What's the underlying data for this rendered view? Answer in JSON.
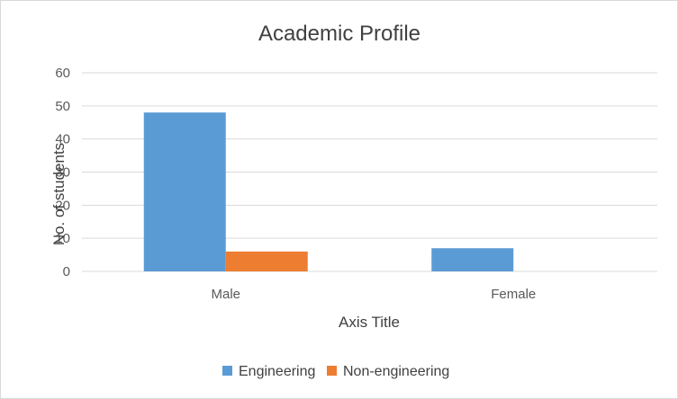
{
  "chart_data": {
    "type": "bar",
    "title": "Academic Profile",
    "xlabel": "Axis Title",
    "ylabel": "No. of students",
    "categories": [
      "Male",
      "Female"
    ],
    "series": [
      {
        "name": "Engineering",
        "values": [
          48,
          7
        ]
      },
      {
        "name": "Non-engineering",
        "values": [
          6,
          0
        ]
      }
    ],
    "ylim": [
      0,
      60
    ],
    "yticks": [
      0,
      10,
      20,
      30,
      40,
      50,
      60
    ],
    "grid": true,
    "legend_position": "bottom"
  },
  "colors": {
    "Engineering": "#5b9bd5",
    "Non-engineering": "#ed7d31",
    "gridline": "#d9d9d9"
  }
}
